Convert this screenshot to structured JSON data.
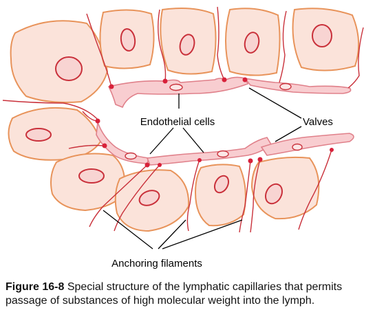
{
  "labels": {
    "endothelial_cells": "Endothelial cells",
    "valves": "Valves",
    "anchoring_filaments": "Anchoring filaments"
  },
  "caption": {
    "figure_number": "Figure 16-8",
    "text": "Special structure of the lymphatic capillaries that permits passage of substances of high molecular weight into the lymph."
  },
  "colors": {
    "tissue_cell_fill": "#fbe3da",
    "tissue_cell_outline": "#e8935a",
    "nucleus_outline": "#c9303a",
    "vessel_fill": "#f8cdd0",
    "filament": "#c9303a"
  }
}
